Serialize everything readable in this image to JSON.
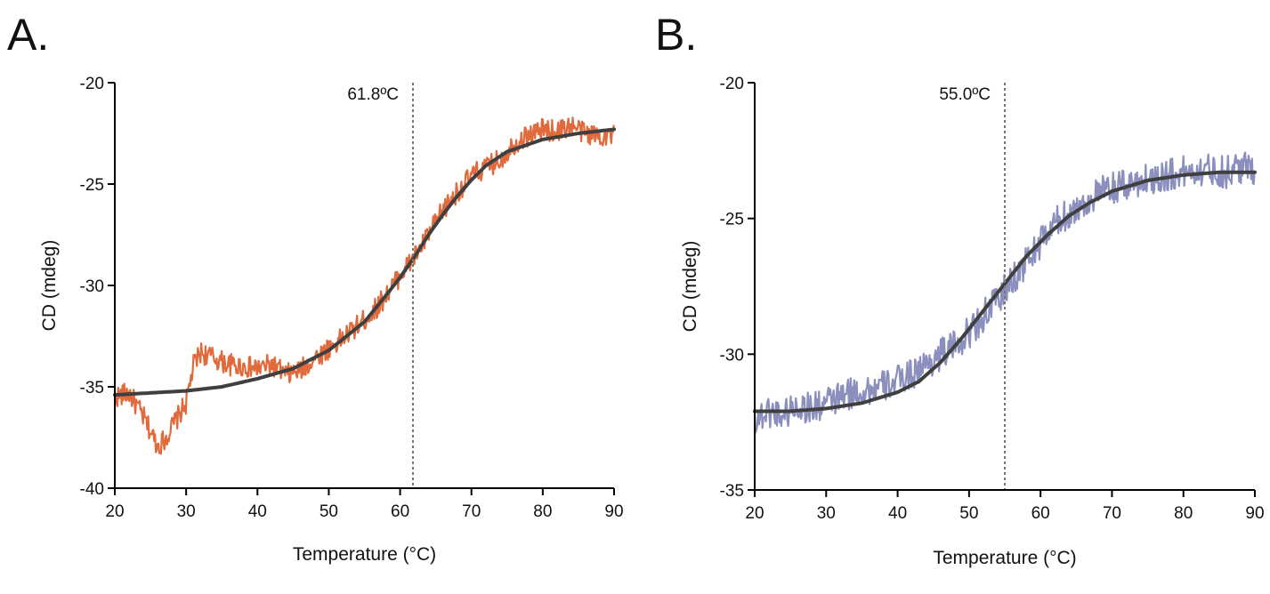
{
  "panels": [
    {
      "letter": "A."
    },
    {
      "letter": "B."
    }
  ],
  "chart_data": [
    {
      "type": "line",
      "xlabel": "Temperature (°C)",
      "ylabel": "CD (mdeg)",
      "xlim": [
        20,
        90
      ],
      "ylim": [
        -40,
        -20
      ],
      "xticks": [
        "20",
        "30",
        "40",
        "50",
        "60",
        "70",
        "80",
        "90"
      ],
      "yticks": [
        "-20",
        "-25",
        "-30",
        "-35",
        "-40"
      ],
      "annotation": {
        "text": "61.8ºC",
        "x": 61.8
      },
      "series": [
        {
          "role": "measured",
          "color": "#e06a3b",
          "x": [
            20,
            22,
            24,
            25,
            26,
            27,
            28,
            30,
            31,
            32,
            34,
            36,
            38,
            40,
            42,
            44,
            46,
            48,
            50,
            52,
            54,
            56,
            58,
            60,
            62,
            64,
            66,
            68,
            70,
            72,
            74,
            76,
            78,
            80,
            82,
            84,
            86,
            88,
            90
          ],
          "y": [
            -35.5,
            -35.3,
            -36.5,
            -37.2,
            -37.9,
            -37.6,
            -37.0,
            -35.8,
            -34.0,
            -33.3,
            -33.6,
            -33.9,
            -34.0,
            -34.1,
            -33.9,
            -34.4,
            -34.2,
            -33.6,
            -33.1,
            -32.6,
            -32.0,
            -31.4,
            -30.5,
            -29.5,
            -28.6,
            -27.5,
            -26.3,
            -25.4,
            -24.6,
            -24.2,
            -23.8,
            -23.0,
            -22.6,
            -22.3,
            -22.4,
            -22.1,
            -22.5,
            -22.6,
            -22.6
          ]
        },
        {
          "role": "fit",
          "color": "#3f3f3f",
          "x": [
            20,
            25,
            30,
            35,
            40,
            45,
            50,
            55,
            58,
            60,
            62,
            64,
            66,
            68,
            70,
            72,
            75,
            80,
            85,
            90
          ],
          "y": [
            -35.4,
            -35.3,
            -35.2,
            -35.0,
            -34.6,
            -34.1,
            -33.2,
            -31.8,
            -30.5,
            -29.6,
            -28.6,
            -27.5,
            -26.5,
            -25.6,
            -24.8,
            -24.1,
            -23.4,
            -22.8,
            -22.5,
            -22.3
          ]
        }
      ]
    },
    {
      "type": "line",
      "xlabel": "Temperature (°C)",
      "ylabel": "CD (mdeg)",
      "xlim": [
        20,
        90
      ],
      "ylim": [
        -35,
        -20
      ],
      "xticks": [
        "20",
        "30",
        "40",
        "50",
        "60",
        "70",
        "80",
        "90"
      ],
      "yticks": [
        "-20",
        "-25",
        "-30",
        "-35"
      ],
      "annotation": {
        "text": "55.0ºC",
        "x": 55.0
      },
      "series": [
        {
          "role": "measured",
          "color": "#8a8fbd",
          "x": [
            20,
            22,
            24,
            26,
            28,
            30,
            32,
            34,
            36,
            38,
            40,
            42,
            44,
            46,
            48,
            50,
            52,
            54,
            56,
            58,
            60,
            62,
            64,
            66,
            68,
            70,
            72,
            74,
            76,
            78,
            80,
            82,
            84,
            86,
            88,
            90
          ],
          "y": [
            -32.4,
            -32.1,
            -32.2,
            -31.9,
            -32.0,
            -31.8,
            -31.6,
            -31.4,
            -31.3,
            -31.2,
            -31.0,
            -30.7,
            -30.4,
            -30.0,
            -29.7,
            -29.2,
            -28.6,
            -28.0,
            -27.3,
            -26.6,
            -25.9,
            -25.2,
            -24.8,
            -24.5,
            -24.1,
            -23.9,
            -23.8,
            -23.6,
            -23.5,
            -23.4,
            -23.3,
            -23.2,
            -23.2,
            -23.3,
            -23.1,
            -23.2
          ]
        },
        {
          "role": "fit",
          "color": "#3f3f3f",
          "x": [
            20,
            25,
            30,
            35,
            40,
            43,
            46,
            49,
            52,
            55,
            58,
            61,
            64,
            67,
            70,
            75,
            80,
            85,
            90
          ],
          "y": [
            -32.1,
            -32.1,
            -32.0,
            -31.8,
            -31.4,
            -31.0,
            -30.3,
            -29.4,
            -28.4,
            -27.4,
            -26.4,
            -25.6,
            -24.9,
            -24.4,
            -24.0,
            -23.6,
            -23.4,
            -23.3,
            -23.3
          ]
        }
      ]
    }
  ]
}
